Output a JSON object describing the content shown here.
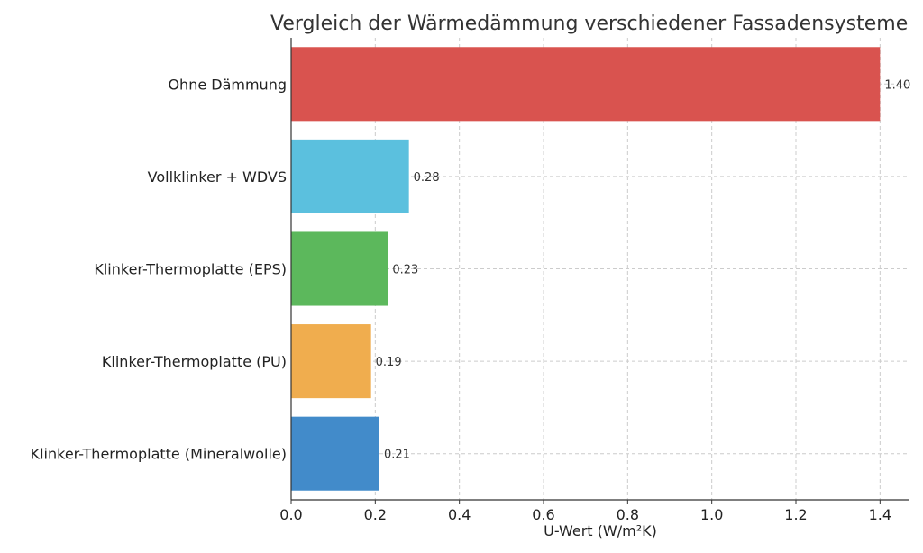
{
  "chart_data": {
    "type": "bar",
    "orientation": "horizontal",
    "title": "Vergleich der Wärmedämmung verschiedener Fassadensysteme",
    "xlabel": "U-Wert (W/m²K)",
    "ylabel": "",
    "xlim": [
      0,
      1.47
    ],
    "xticks": [
      0.0,
      0.2,
      0.4,
      0.6,
      0.8,
      1.0,
      1.2,
      1.4
    ],
    "xtick_labels": [
      "0.0",
      "0.2",
      "0.4",
      "0.6",
      "0.8",
      "1.0",
      "1.2",
      "1.4"
    ],
    "grid": true,
    "categories": [
      "Ohne Dämmung",
      "Vollklinker + WDVS",
      "Klinker-Thermoplatte (EPS)",
      "Klinker-Thermoplatte (PU)",
      "Klinker-Thermoplatte (Mineralwolle)"
    ],
    "values": [
      1.4,
      0.28,
      0.23,
      0.19,
      0.21
    ],
    "value_labels": [
      "1.40",
      "0.28",
      "0.23",
      "0.19",
      "0.21"
    ],
    "colors": [
      "#d9534f",
      "#5bc0de",
      "#5cb85c",
      "#f0ad4e",
      "#428bca"
    ]
  }
}
